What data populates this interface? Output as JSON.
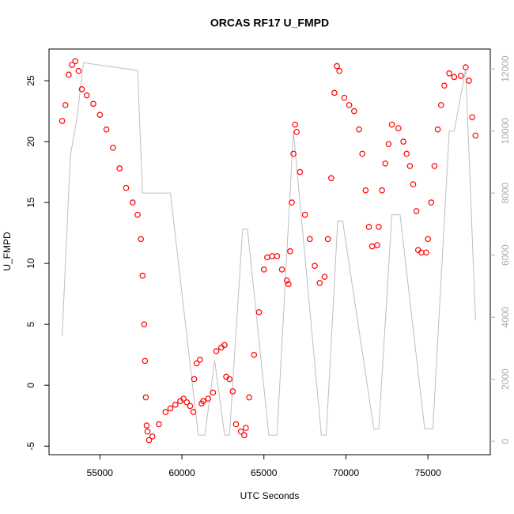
{
  "chart_data": {
    "type": "scatter",
    "title": "ORCAS RF17 U_FMPD",
    "x_label": "UTC Seconds",
    "y_label": "U_FMPD",
    "xlim": [
      51900,
      78800
    ],
    "ylim": [
      -5.7,
      27.6
    ],
    "y2lim": [
      -430,
      12640
    ],
    "xticks": [
      55000,
      60000,
      65000,
      70000,
      75000
    ],
    "yticks": [
      -5,
      0,
      5,
      10,
      15,
      20,
      25
    ],
    "y2ticks": [
      0,
      2000,
      4000,
      6000,
      8000,
      10000,
      12000
    ],
    "grid": false,
    "series": [
      {
        "type": "scatter",
        "color": "#ff0000",
        "x": [
          52700,
          52900,
          53100,
          53300,
          53500,
          53700,
          53900,
          54200,
          54600,
          55000,
          55400,
          55800,
          56200,
          56600,
          57000,
          57300,
          57500,
          57600,
          57700,
          57750,
          57800,
          57850,
          57900,
          58000,
          58200,
          58600,
          59000,
          59300,
          59600,
          59900,
          60100,
          60300,
          60500,
          60700,
          60750,
          60900,
          61100,
          61200,
          61300,
          61600,
          61900,
          62100,
          62400,
          62600,
          62700,
          62900,
          63100,
          63300,
          63600,
          63800,
          63900,
          64100,
          64400,
          64700,
          65000,
          65200,
          65500,
          65800,
          66100,
          66400,
          66500,
          66600,
          66700,
          66800,
          66900,
          67000,
          67200,
          67500,
          67800,
          68100,
          68400,
          68700,
          68900,
          69100,
          69300,
          69450,
          69600,
          69900,
          70200,
          70500,
          70800,
          71000,
          71200,
          71400,
          71600,
          71900,
          72000,
          72200,
          72400,
          72600,
          72800,
          73200,
          73500,
          73700,
          73900,
          74100,
          74300,
          74400,
          74600,
          74900,
          75000,
          75200,
          75400,
          75600,
          75800,
          76000,
          76300,
          76600,
          77000,
          77300,
          77500,
          77700,
          77900
        ],
        "values": [
          21.7,
          23,
          25.5,
          26.3,
          26.6,
          25.8,
          24.3,
          23.8,
          23.1,
          22.2,
          21,
          19.5,
          17.8,
          16.2,
          15,
          14,
          12,
          9,
          5,
          2,
          -1,
          -3.3,
          -3.8,
          -4.5,
          -4.2,
          -3.2,
          -2.2,
          -1.9,
          -1.6,
          -1.3,
          -1.1,
          -1.4,
          -1.7,
          -2.2,
          0.5,
          1.8,
          2.1,
          -1.5,
          -1.3,
          -1.1,
          -0.6,
          2.8,
          3.1,
          3.3,
          0.7,
          0.5,
          -0.5,
          -3.2,
          -3.8,
          -4.1,
          -3.5,
          -1,
          2.5,
          6,
          9.5,
          10.5,
          10.6,
          10.6,
          9.5,
          8.6,
          8.3,
          11,
          15,
          19,
          21.4,
          20.8,
          17.5,
          14,
          12,
          9.8,
          8.4,
          8.9,
          12,
          17,
          24,
          26.2,
          25.8,
          23.6,
          23,
          22.5,
          21,
          19,
          16,
          13,
          11.4,
          11.5,
          13,
          16,
          18.2,
          19.8,
          21.4,
          21.1,
          20,
          19,
          18,
          16.5,
          14.3,
          11.1,
          10.9,
          10.9,
          12,
          15,
          18,
          21,
          23,
          24.6,
          25.6,
          25.3,
          25.4,
          26.1,
          25,
          22,
          20.5
        ]
      },
      {
        "type": "line",
        "axis": "y2",
        "color": "#bebebe",
        "x": [
          52700,
          53200,
          53600,
          54000,
          57300,
          57600,
          59300,
          61000,
          61400,
          62000,
          62600,
          62900,
          63700,
          64000,
          65300,
          65800,
          66800,
          68500,
          68800,
          69500,
          69800,
          71700,
          72000,
          72800,
          73300,
          74800,
          75300,
          76300,
          76600,
          77300,
          77900
        ],
        "values": [
          3400,
          9200,
          10400,
          12200,
          11950,
          8000,
          8000,
          200,
          200,
          2600,
          200,
          200,
          6830,
          6830,
          200,
          200,
          10000,
          200,
          200,
          7100,
          7100,
          400,
          400,
          7300,
          7300,
          400,
          400,
          10000,
          10000,
          12000,
          3900
        ]
      }
    ]
  }
}
